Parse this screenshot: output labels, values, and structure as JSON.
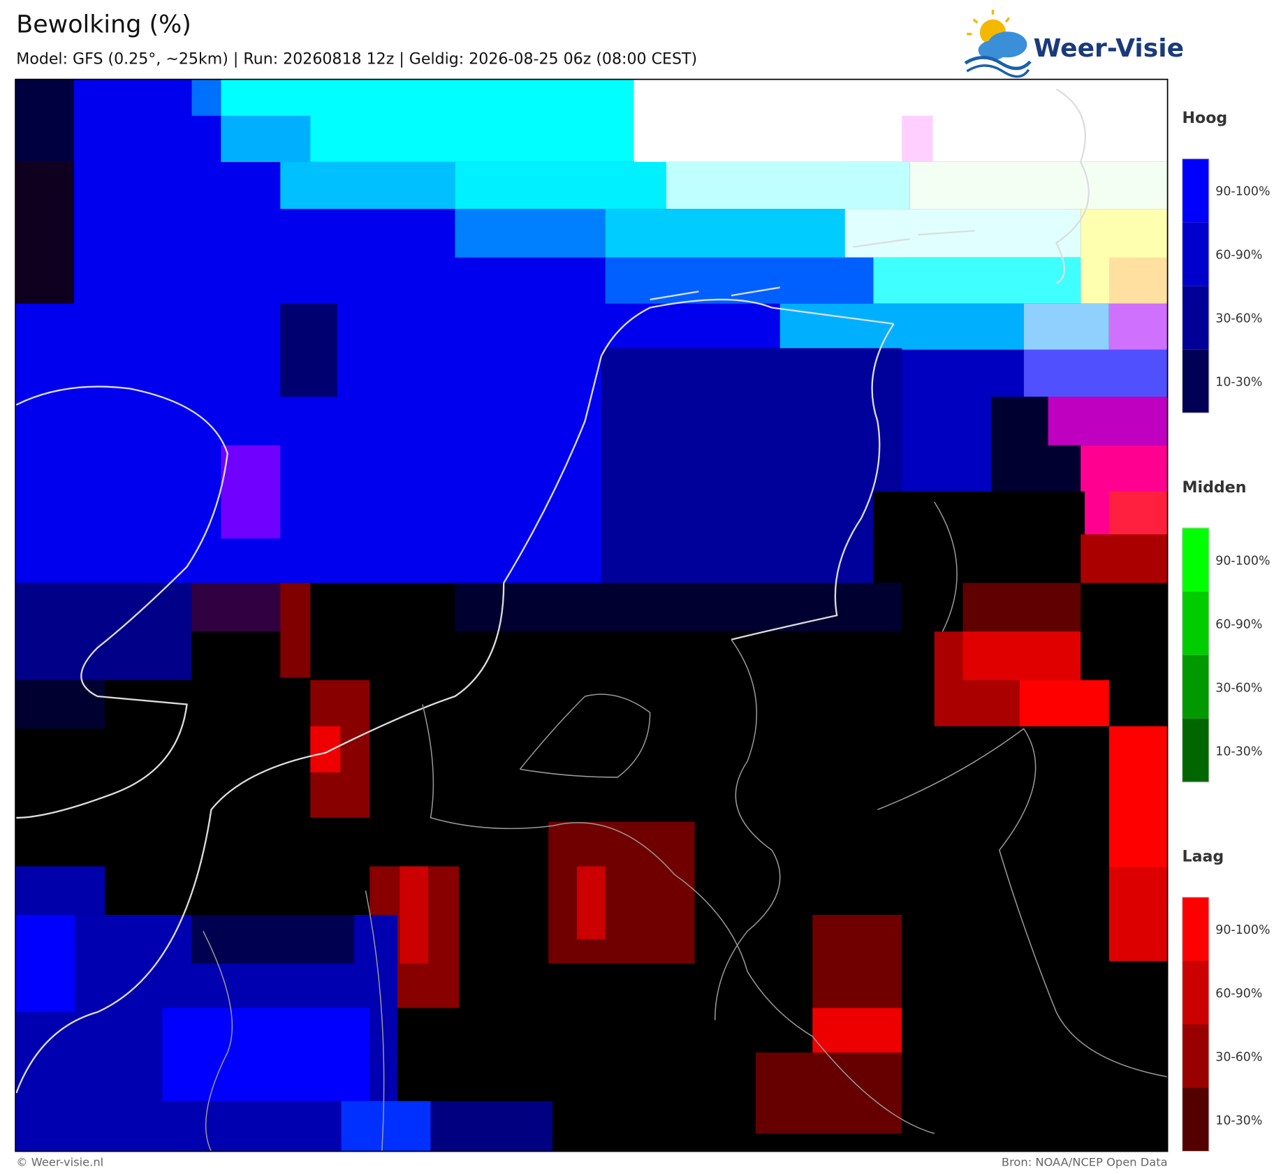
{
  "header": {
    "title": "Bewolking (%)",
    "subtitle": "Model: GFS (0.25°, ~25km)  |  Run: 20260818 12z  |  Geldig: 2026-08-25 06z (08:00 CEST)",
    "logo": "Weer-Visie"
  },
  "legend": [
    {
      "title": "Hoog",
      "items": [
        {
          "label": "90-100%",
          "color": "#0000ff"
        },
        {
          "label": "60-90%",
          "color": "#0000cc"
        },
        {
          "label": "30-60%",
          "color": "#000099"
        },
        {
          "label": "10-30%",
          "color": "#000055"
        }
      ]
    },
    {
      "title": "Midden",
      "items": [
        {
          "label": "90-100%",
          "color": "#00ff00"
        },
        {
          "label": "60-90%",
          "color": "#00cc00"
        },
        {
          "label": "30-60%",
          "color": "#009900"
        },
        {
          "label": "10-30%",
          "color": "#006600"
        }
      ]
    },
    {
      "title": "Laag",
      "items": [
        {
          "label": "90-100%",
          "color": "#ff0000"
        },
        {
          "label": "60-90%",
          "color": "#cc0000"
        },
        {
          "label": "30-60%",
          "color": "#990000"
        },
        {
          "label": "10-30%",
          "color": "#550000"
        }
      ]
    }
  ],
  "footer": {
    "left": "© Weer-visie.nl",
    "right": "Bron: NOAA/NCEP Open Data"
  }
}
